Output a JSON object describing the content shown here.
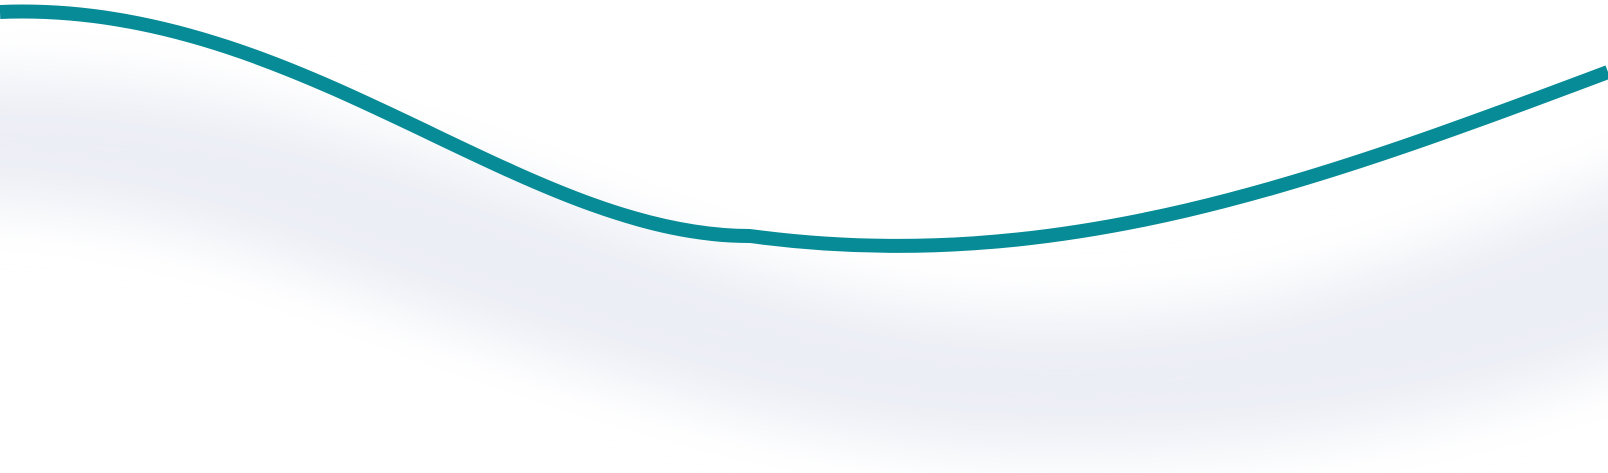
{
  "decoration": {
    "type": "wave",
    "colors": {
      "background": "#ffffff",
      "line": "#078b96",
      "shadow": "#eceef5"
    }
  }
}
